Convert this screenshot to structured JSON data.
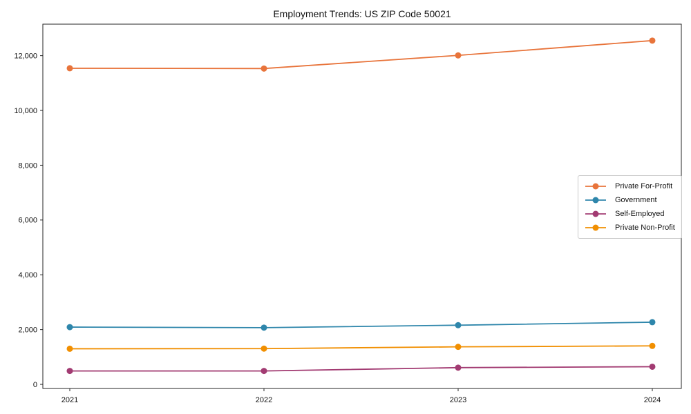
{
  "chart_data": {
    "type": "line",
    "title": "Employment Trends: US ZIP Code 50021",
    "xlabel": "",
    "ylabel": "",
    "x_categories": [
      "2021",
      "2022",
      "2023",
      "2024"
    ],
    "series": [
      {
        "name": "Private For-Profit",
        "color": "#E8743B",
        "values": [
          11540,
          11530,
          12010,
          12550
        ]
      },
      {
        "name": "Government",
        "color": "#2E86AB",
        "values": [
          2090,
          2070,
          2160,
          2270
        ]
      },
      {
        "name": "Self-Employed",
        "color": "#A23B72",
        "values": [
          490,
          490,
          610,
          645
        ]
      },
      {
        "name": "Private Non-Profit",
        "color": "#F18F01",
        "values": [
          1300,
          1305,
          1370,
          1405
        ]
      }
    ],
    "ylim": [
      -150,
      13150
    ],
    "yticks": [
      0,
      2000,
      4000,
      6000,
      8000,
      10000,
      12000
    ],
    "ytick_labels": [
      "0",
      "2,000",
      "4,000",
      "6,000",
      "8,000",
      "10,000",
      "12,000"
    ],
    "grid": false,
    "legend_position": "right-middle",
    "axis_color": "#262626",
    "background": "#ffffff"
  }
}
